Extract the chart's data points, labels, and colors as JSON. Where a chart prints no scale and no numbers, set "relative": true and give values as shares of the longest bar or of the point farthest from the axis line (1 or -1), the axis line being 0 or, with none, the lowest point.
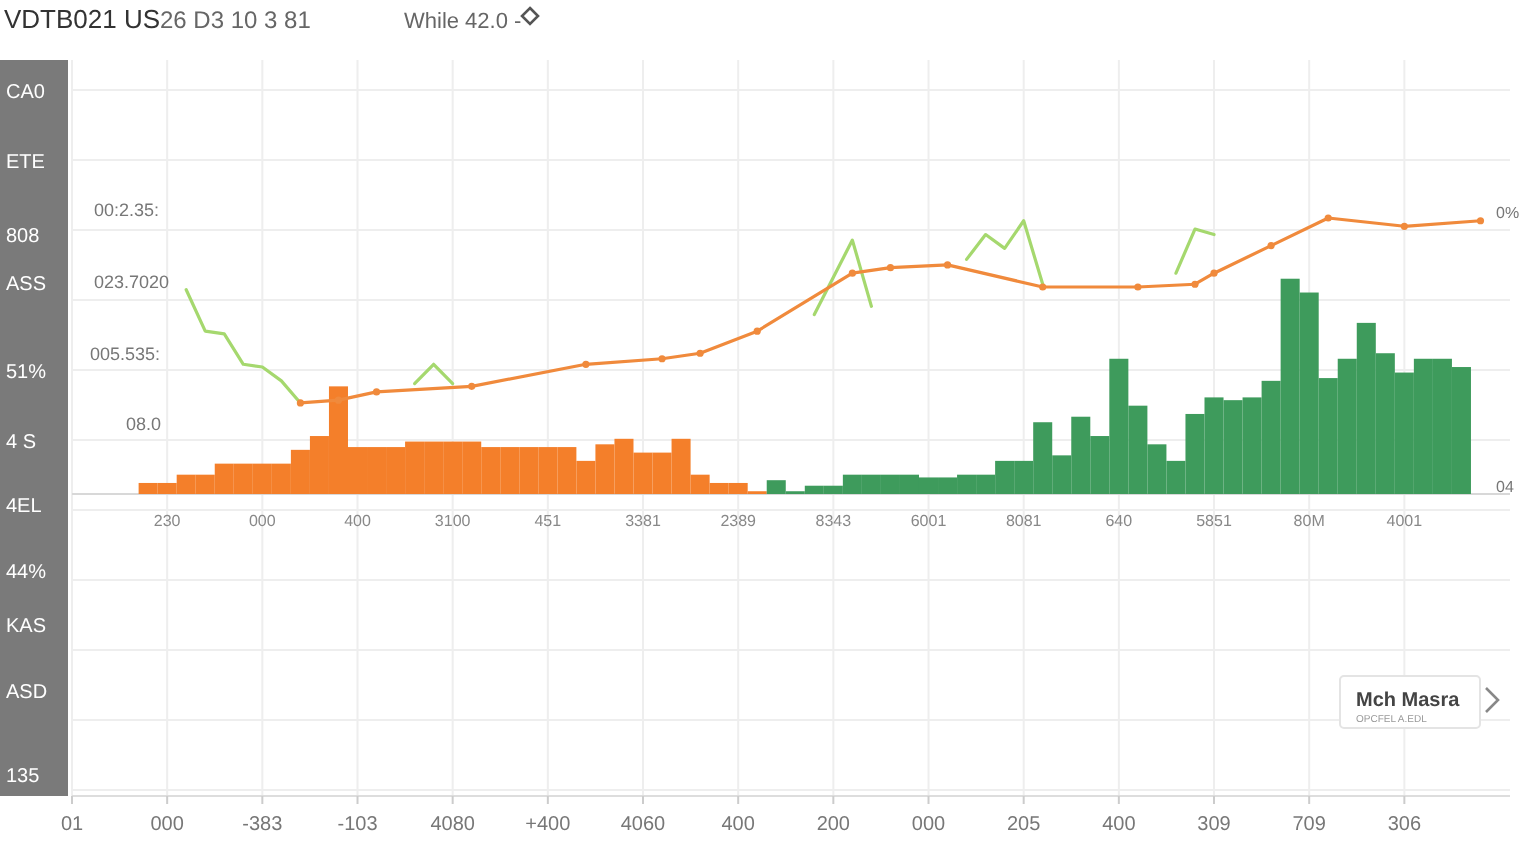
{
  "chart_data": {
    "type": "bar",
    "title": "VDTB021 US",
    "subtitle": "26 D3 10 3 81",
    "relative": true,
    "grid": true,
    "legend": false,
    "categories": [
      "01",
      null,
      null,
      null,
      null,
      "000",
      null,
      null,
      null,
      null,
      "-383",
      null,
      null,
      null,
      null,
      "-103",
      null,
      null,
      null,
      null,
      "4080",
      null,
      null,
      null,
      null,
      "+400",
      null,
      null,
      null,
      null,
      "4060",
      null,
      null,
      null,
      null,
      "400",
      null,
      null,
      null,
      null,
      "200",
      null,
      null,
      null,
      null,
      "000",
      null,
      null,
      null,
      null,
      "205",
      null,
      null,
      null,
      null,
      "400",
      null,
      null,
      null,
      null,
      "309",
      null,
      null,
      null,
      null,
      "709",
      null,
      null,
      null,
      null,
      "306",
      null,
      null,
      null,
      null
    ],
    "series": [
      {
        "color": "#f47f2a",
        "values": [
          null,
          null,
          null,
          null,
          0.04,
          0.04,
          0.07,
          0.07,
          0.11,
          0.11,
          0.11,
          0.11,
          0.16,
          0.21,
          0.39,
          0.17,
          0.17,
          0.17,
          0.19,
          0.19,
          0.19,
          0.19,
          0.17,
          0.17,
          0.17,
          0.17,
          0.17,
          0.12,
          0.18,
          0.2,
          0.15,
          0.15,
          0.2,
          0.07,
          0.04,
          0.04,
          0.01,
          null,
          null,
          null,
          null,
          null,
          null,
          null,
          null,
          null,
          null,
          null,
          null,
          null,
          null,
          null,
          null,
          null,
          null,
          null,
          null,
          null,
          null,
          null,
          null,
          null,
          null,
          null,
          null,
          null,
          null,
          null,
          null,
          null,
          null,
          null,
          null,
          null,
          null
        ]
      },
      {
        "color": "#3e9b5c",
        "values": [
          null,
          null,
          null,
          null,
          null,
          null,
          null,
          null,
          null,
          null,
          null,
          null,
          null,
          null,
          null,
          null,
          null,
          null,
          null,
          null,
          null,
          null,
          null,
          null,
          null,
          null,
          null,
          null,
          null,
          null,
          null,
          null,
          null,
          null,
          null,
          null,
          null,
          0.05,
          0.01,
          0.03,
          0.03,
          0.07,
          0.07,
          0.07,
          0.07,
          0.06,
          0.06,
          0.07,
          0.07,
          0.12,
          0.12,
          0.26,
          0.14,
          0.28,
          0.21,
          0.49,
          0.32,
          0.18,
          0.12,
          0.29,
          0.35,
          0.34,
          0.35,
          0.41,
          0.78,
          0.73,
          0.42,
          0.49,
          0.62,
          0.51,
          0.44,
          0.49,
          0.49,
          0.46,
          null
        ]
      },
      {
        "type": "line",
        "color": "#a5d86e",
        "marker": "none",
        "values": [
          null,
          null,
          null,
          null,
          null,
          null,
          0.74,
          0.59,
          0.58,
          0.47,
          0.46,
          0.41,
          0.33,
          null,
          null,
          null,
          null,
          null,
          null,
          null,
          null,
          null,
          null,
          null,
          null,
          null,
          null,
          null,
          null,
          null,
          null,
          null,
          null,
          null,
          null,
          null,
          null,
          null,
          null,
          null,
          null,
          null,
          null,
          null,
          null,
          null,
          null,
          null,
          null,
          null,
          null,
          null,
          null,
          null,
          null,
          null,
          null,
          null,
          null,
          null,
          null,
          null,
          null,
          null,
          null,
          null,
          null,
          null,
          null,
          null,
          null,
          null,
          null,
          null,
          null
        ]
      },
      {
        "type": "line",
        "color": "#a5d86e",
        "marker": "none",
        "values": [
          null,
          null,
          null,
          null,
          null,
          null,
          null,
          null,
          null,
          null,
          null,
          null,
          null,
          null,
          null,
          null,
          null,
          null,
          0.4,
          0.47,
          0.4,
          null,
          null,
          null,
          null,
          null,
          null,
          null,
          null,
          null,
          null,
          null,
          null,
          null,
          null,
          null,
          null,
          null,
          null,
          null,
          null,
          null,
          null,
          null,
          null,
          null,
          null,
          null,
          null,
          null,
          null,
          null,
          null,
          null,
          null,
          null,
          null,
          null,
          null,
          null,
          null,
          null,
          null,
          null,
          null,
          null,
          null,
          null,
          null,
          null,
          null,
          null,
          null,
          null,
          null
        ]
      },
      {
        "type": "line",
        "color": "#a5d86e",
        "marker": "none",
        "values": [
          null,
          null,
          null,
          null,
          null,
          null,
          null,
          null,
          null,
          null,
          null,
          null,
          null,
          null,
          null,
          null,
          null,
          null,
          null,
          null,
          null,
          null,
          null,
          null,
          null,
          null,
          null,
          null,
          null,
          null,
          null,
          null,
          null,
          null,
          null,
          null,
          null,
          null,
          null,
          0.65,
          null,
          0.92,
          0.68,
          null,
          null,
          null,
          null,
          null,
          null,
          null,
          null,
          null,
          null,
          null,
          null,
          null,
          null,
          null,
          null,
          null,
          null,
          null,
          null,
          null,
          null,
          null,
          null,
          null,
          null,
          null,
          null,
          null,
          null,
          null,
          null
        ]
      },
      {
        "type": "line",
        "color": "#a5d86e",
        "marker": "none",
        "values": [
          null,
          null,
          null,
          null,
          null,
          null,
          null,
          null,
          null,
          null,
          null,
          null,
          null,
          null,
          null,
          null,
          null,
          null,
          null,
          null,
          null,
          null,
          null,
          null,
          null,
          null,
          null,
          null,
          null,
          null,
          null,
          null,
          null,
          null,
          null,
          null,
          null,
          null,
          null,
          null,
          null,
          null,
          null,
          null,
          null,
          null,
          null,
          0.85,
          0.94,
          0.89,
          0.99,
          0.76,
          null,
          null,
          null,
          null,
          null,
          null,
          null,
          null,
          null,
          null,
          null,
          null,
          null,
          null,
          null,
          null,
          null,
          null,
          null,
          null,
          null,
          null,
          null
        ]
      },
      {
        "type": "line",
        "color": "#a5d86e",
        "marker": "none",
        "values": [
          null,
          null,
          null,
          null,
          null,
          null,
          null,
          null,
          null,
          null,
          null,
          null,
          null,
          null,
          null,
          null,
          null,
          null,
          null,
          null,
          null,
          null,
          null,
          null,
          null,
          null,
          null,
          null,
          null,
          null,
          null,
          null,
          null,
          null,
          null,
          null,
          null,
          null,
          null,
          null,
          null,
          null,
          null,
          null,
          null,
          null,
          null,
          null,
          null,
          null,
          null,
          null,
          null,
          null,
          null,
          null,
          null,
          null,
          0.8,
          0.96,
          0.94,
          null,
          null,
          null,
          null,
          null,
          null,
          null,
          null,
          null,
          null,
          null,
          null,
          null,
          null
        ]
      },
      {
        "type": "line",
        "color": "#f08a3c",
        "marker": "circle",
        "values": [
          null,
          null,
          null,
          null,
          null,
          null,
          null,
          null,
          null,
          null,
          null,
          null,
          0.33,
          null,
          0.34,
          null,
          0.37,
          null,
          null,
          null,
          null,
          0.39,
          null,
          null,
          null,
          null,
          null,
          0.47,
          null,
          null,
          null,
          0.49,
          null,
          0.51,
          null,
          null,
          0.59,
          null,
          null,
          null,
          null,
          0.8,
          null,
          0.82,
          null,
          null,
          0.83,
          null,
          null,
          null,
          null,
          0.75,
          null,
          null,
          null,
          null,
          0.75,
          null,
          null,
          0.76,
          0.8,
          null,
          null,
          0.9,
          null,
          null,
          1,
          null,
          null,
          null,
          0.97,
          null,
          null,
          null,
          0.99
        ]
      }
    ],
    "annotations": [
      "CA0",
      "ETE",
      "808",
      "ASS",
      "51%",
      "4 S",
      "4EL",
      "44%",
      "KAS",
      "ASD",
      "135",
      "00:2.35:",
      "023.7020",
      "005.535:",
      "08.0",
      "0%",
      "04",
      "While 42.0 -",
      "Mch Masra",
      "OPCFEL A.EDL",
      "230",
      "000",
      "400",
      "3100",
      "451",
      "3381",
      "2389",
      "8343",
      "6001",
      "8081",
      "640",
      "5851",
      "80M",
      "4001"
    ]
  }
}
